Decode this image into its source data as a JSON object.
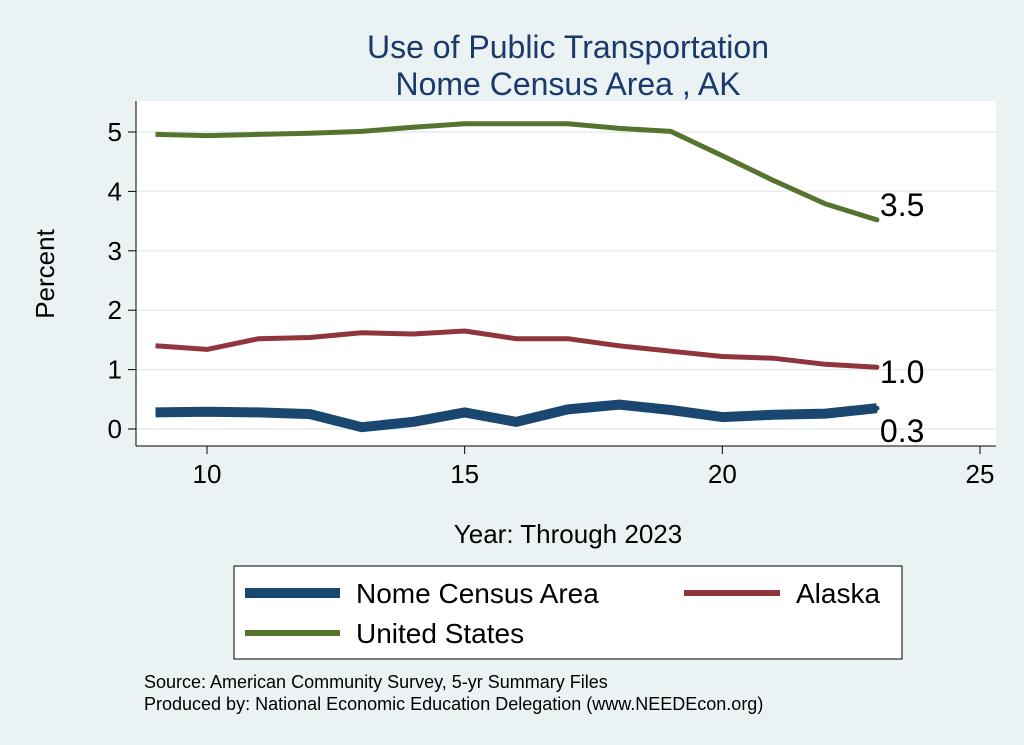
{
  "chart_data": {
    "type": "line",
    "title": [
      "Use of Public Transportation",
      "Nome Census Area , AK"
    ],
    "xlabel": "Year: Through 2023",
    "ylabel": "Percent",
    "xlim": [
      9,
      25
    ],
    "ylim": [
      0,
      5.2
    ],
    "xticks": [
      10,
      15,
      20,
      25
    ],
    "yticks": [
      0,
      1,
      2,
      3,
      4,
      5
    ],
    "grid": true,
    "x": [
      9,
      10,
      11,
      12,
      13,
      14,
      15,
      16,
      17,
      18,
      19,
      20,
      21,
      22,
      23
    ],
    "series": [
      {
        "name": "Nome Census Area",
        "color": "#1a476f",
        "values": [
          0.28,
          0.29,
          0.28,
          0.25,
          0.03,
          0.12,
          0.28,
          0.12,
          0.33,
          0.41,
          0.32,
          0.2,
          0.24,
          0.26,
          0.35
        ],
        "end_label": "0.3"
      },
      {
        "name": "Alaska",
        "color": "#90353b",
        "values": [
          1.4,
          1.34,
          1.52,
          1.54,
          1.62,
          1.6,
          1.65,
          1.52,
          1.52,
          1.4,
          1.31,
          1.22,
          1.19,
          1.09,
          1.04
        ],
        "end_label": "1.0"
      },
      {
        "name": "United States",
        "color": "#55752f",
        "values": [
          4.96,
          4.94,
          4.96,
          4.98,
          5.01,
          5.08,
          5.14,
          5.14,
          5.14,
          5.06,
          5.01,
          4.6,
          4.18,
          3.79,
          3.52
        ],
        "end_label": "3.5"
      }
    ],
    "legend": {
      "placement": "bottom"
    },
    "notes": [
      "Source: American Community Survey, 5-yr Summary Files",
      "Produced by: National Economic Education Delegation (www.NEEDEcon.org)"
    ]
  }
}
